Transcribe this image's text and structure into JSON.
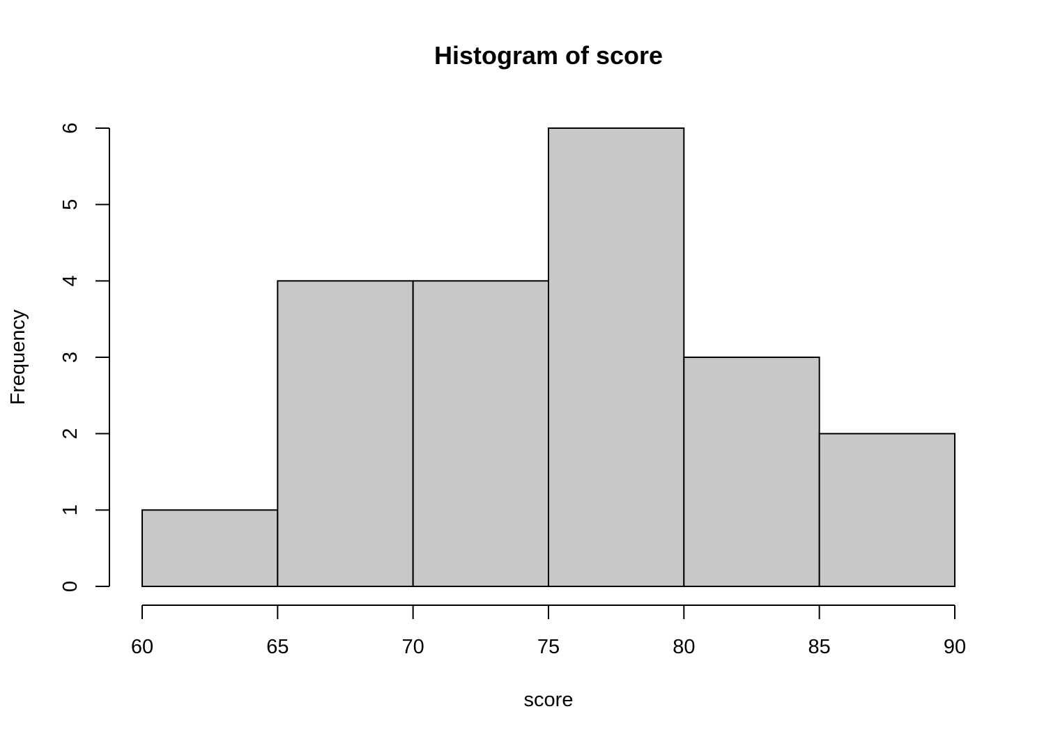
{
  "chart_data": {
    "type": "bar",
    "title": "Histogram of score",
    "xlabel": "score",
    "ylabel": "Frequency",
    "bins": [
      {
        "start": 60,
        "end": 65,
        "count": 1
      },
      {
        "start": 65,
        "end": 70,
        "count": 4
      },
      {
        "start": 70,
        "end": 75,
        "count": 4
      },
      {
        "start": 75,
        "end": 80,
        "count": 6
      },
      {
        "start": 80,
        "end": 85,
        "count": 3
      },
      {
        "start": 85,
        "end": 90,
        "count": 2
      }
    ],
    "x_ticks": [
      60,
      65,
      70,
      75,
      80,
      85,
      90
    ],
    "y_ticks": [
      0,
      1,
      2,
      3,
      4,
      5,
      6
    ],
    "xlim": [
      60,
      90
    ],
    "ylim": [
      0,
      6
    ],
    "grid": false,
    "bar_color": "#c8c8c8"
  }
}
